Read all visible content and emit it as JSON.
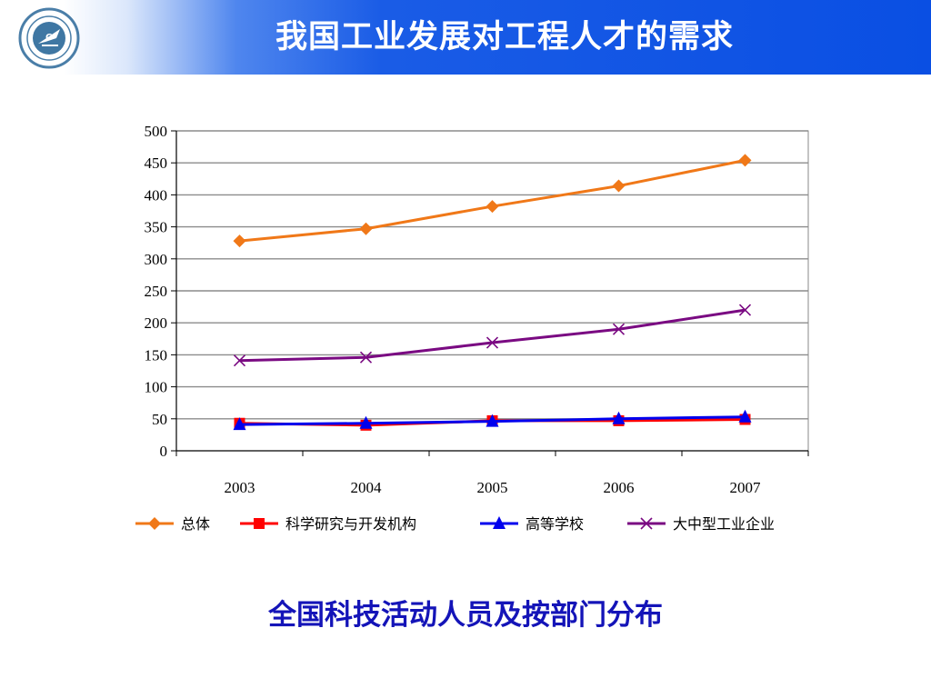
{
  "header": {
    "title": "我国工业发展对工程人才的需求"
  },
  "caption": "全国科技活动人员及按部门分布",
  "chart_data": {
    "type": "line",
    "title": "",
    "xlabel": "",
    "ylabel": "",
    "categories": [
      "2003",
      "2004",
      "2005",
      "2006",
      "2007"
    ],
    "ylim": [
      0,
      500
    ],
    "yticks": [
      0,
      50,
      100,
      150,
      200,
      250,
      300,
      350,
      400,
      450,
      500
    ],
    "grid": true,
    "legend_position": "bottom",
    "series": [
      {
        "name": "总体",
        "values": [
          328,
          347,
          382,
          414,
          454
        ],
        "color": "#f07818",
        "marker": "diamond"
      },
      {
        "name": "科学研究与开发机构",
        "values": [
          43,
          40,
          47,
          47,
          49
        ],
        "color": "#ff0000",
        "marker": "square"
      },
      {
        "name": "高等学校",
        "values": [
          41,
          43,
          46,
          50,
          53
        ],
        "color": "#0000ee",
        "marker": "triangle"
      },
      {
        "name": "大中型工业企业",
        "values": [
          141,
          146,
          169,
          190,
          220
        ],
        "color": "#7a0a82",
        "marker": "x"
      }
    ]
  }
}
